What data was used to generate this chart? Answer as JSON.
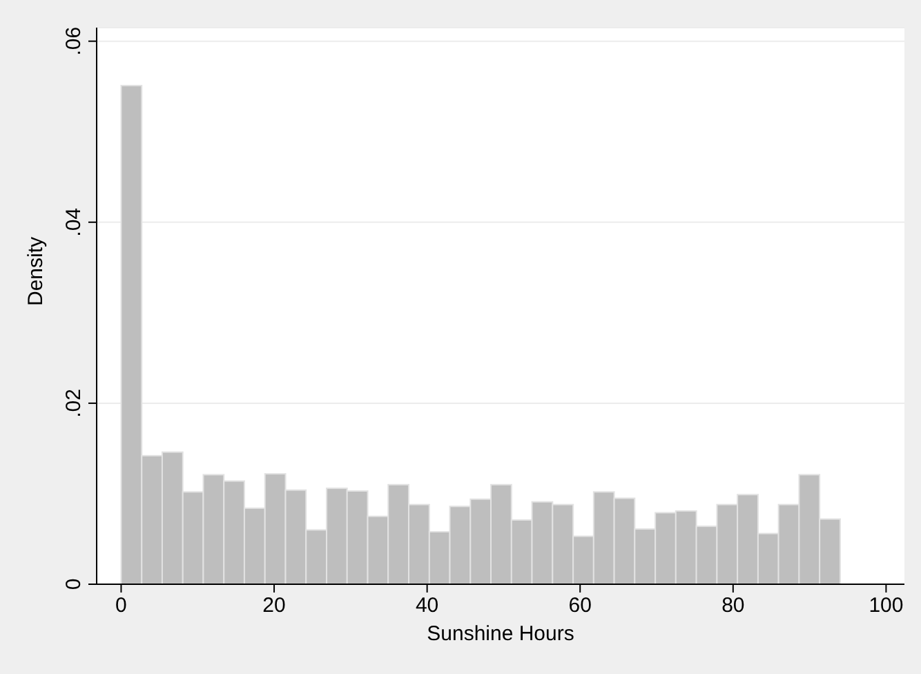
{
  "chart_data": {
    "type": "histogram",
    "xlabel": "Sunshine Hours",
    "ylabel": "Density",
    "bins": [
      0,
      2.69,
      5.37,
      8.06,
      10.74,
      13.43,
      16.11,
      18.8,
      21.49,
      24.17,
      26.86,
      29.54,
      32.23,
      34.91,
      37.6,
      40.29,
      42.97,
      45.66,
      48.34,
      51.03,
      53.71,
      56.4,
      59.09,
      61.77,
      64.46,
      67.14,
      69.83,
      72.51,
      75.2,
      77.89,
      80.57,
      83.26,
      85.94,
      88.63,
      91.31,
      94
    ],
    "values": [
      0.0551,
      0.0142,
      0.0146,
      0.0102,
      0.0121,
      0.0114,
      0.0084,
      0.0122,
      0.0104,
      0.006,
      0.0106,
      0.0103,
      0.0075,
      0.011,
      0.0088,
      0.0058,
      0.0086,
      0.0094,
      0.011,
      0.0071,
      0.0091,
      0.0088,
      0.0053,
      0.0102,
      0.0095,
      0.0061,
      0.0079,
      0.0081,
      0.0064,
      0.0088,
      0.0099,
      0.0056,
      0.0088,
      0.0121,
      0.0072
    ],
    "color": "#bebebe",
    "xlim": [
      -3.2,
      102.4
    ],
    "xticks": [
      0,
      20,
      40,
      60,
      80,
      100
    ],
    "ylim": [
      0,
      0.0615
    ],
    "yticks": [
      {
        "value": 0,
        "label": "0"
      },
      {
        "value": 0.02,
        "label": ".02"
      },
      {
        "value": 0.04,
        "label": ".04"
      },
      {
        "value": 0.06,
        "label": ".06"
      }
    ],
    "grid": "y",
    "legend": false
  }
}
